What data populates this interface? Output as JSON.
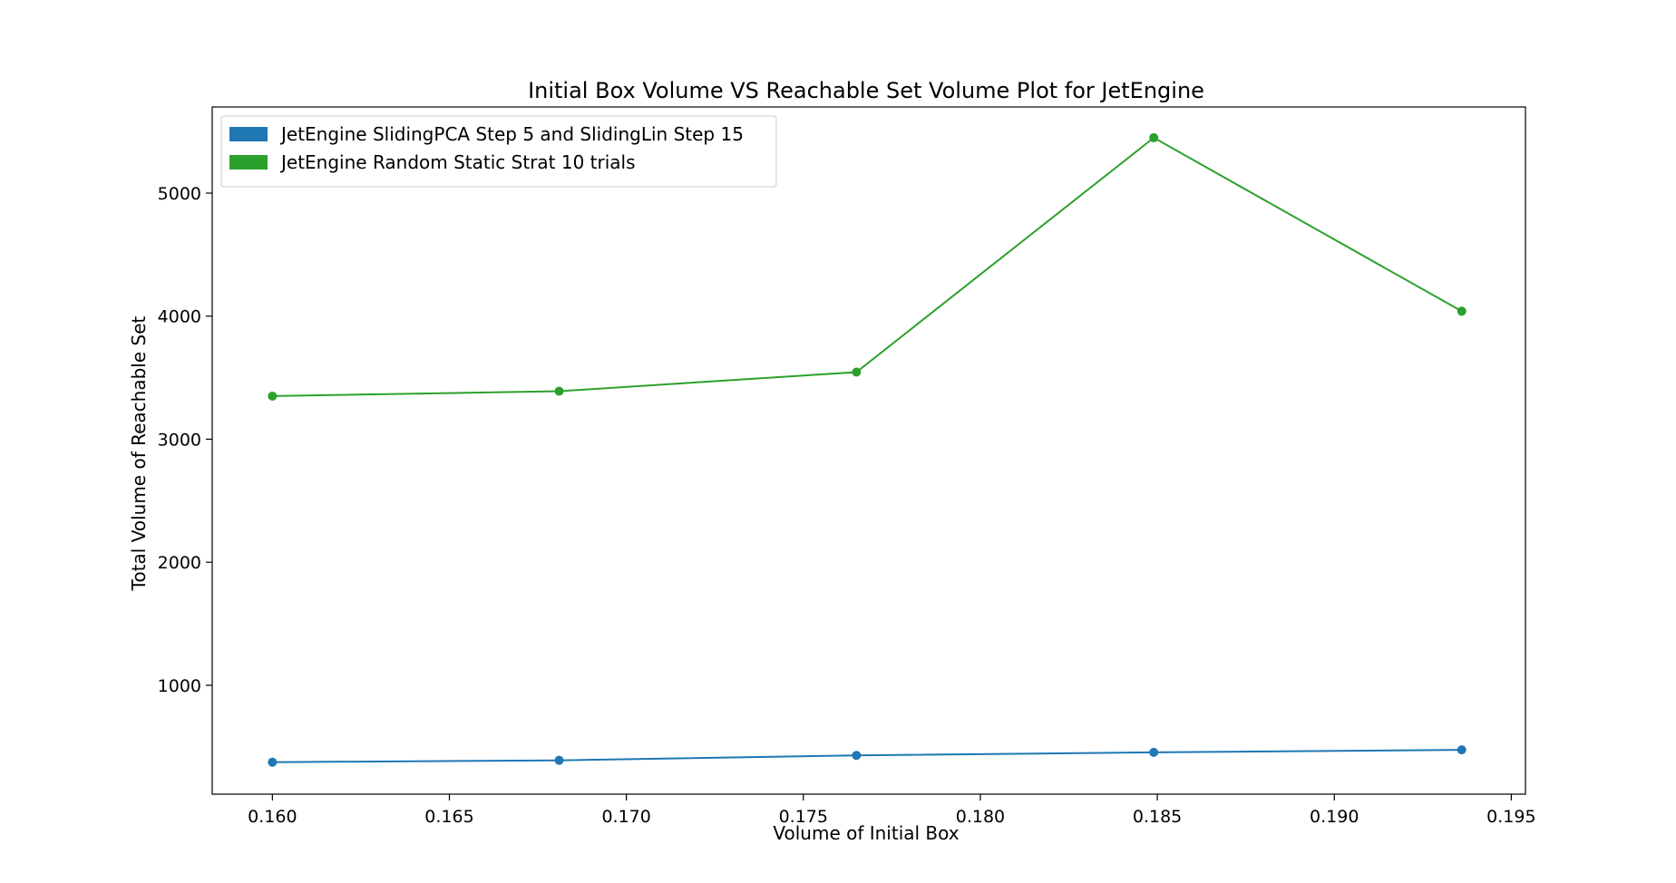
{
  "chart_data": {
    "type": "line",
    "title": "Initial Box Volume VS Reachable Set Volume Plot for JetEngine",
    "xlabel": "Volume of Initial Box",
    "ylabel": "Total Volume of Reachable Set",
    "xlim": [
      0.1583,
      0.1954
    ],
    "ylim": [
      115,
      5700
    ],
    "xticks": [
      0.16,
      0.165,
      0.17,
      0.175,
      0.18,
      0.185,
      0.19,
      0.195
    ],
    "xtick_labels": [
      "0.160",
      "0.165",
      "0.170",
      "0.175",
      "0.180",
      "0.185",
      "0.190",
      "0.195"
    ],
    "yticks": [
      1000,
      2000,
      3000,
      4000,
      5000
    ],
    "ytick_labels": [
      "1000",
      "2000",
      "3000",
      "4000",
      "5000"
    ],
    "grid": false,
    "legend_position": "upper-left",
    "x": [
      0.16,
      0.1681,
      0.1765,
      0.1849,
      0.1936
    ],
    "series": [
      {
        "name": "JetEngine SlidingPCA Step 5 and SlidingLin Step 15",
        "color": "#1f77b4",
        "values": [
          375,
          390,
          430,
          455,
          475
        ]
      },
      {
        "name": "JetEngine Random Static Strat 10 trials",
        "color": "#2ca02c",
        "values": [
          3350,
          3390,
          3545,
          5450,
          4040
        ]
      }
    ]
  }
}
